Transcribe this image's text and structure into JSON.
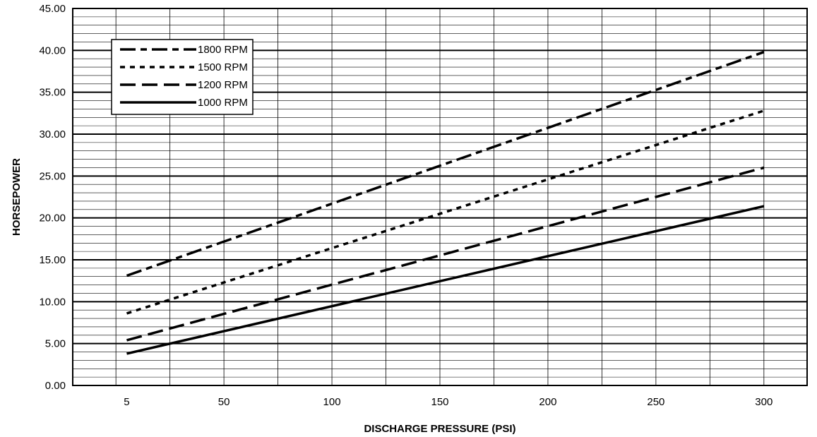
{
  "chart_data": {
    "type": "line",
    "title": "",
    "xlabel": "DISCHARGE PRESSURE (PSI)",
    "ylabel": "HORSEPOWER",
    "xlim": [
      -20,
      320
    ],
    "ylim": [
      0,
      45
    ],
    "x_ticks": [
      5,
      50,
      100,
      150,
      200,
      250,
      300
    ],
    "x_tick_labels": [
      "5",
      "50",
      "100",
      "150",
      "200",
      "250",
      "300"
    ],
    "y_ticks": [
      0,
      5,
      10,
      15,
      20,
      25,
      30,
      35,
      40,
      45
    ],
    "y_tick_labels": [
      "0.00",
      "5.00",
      "10.00",
      "15.00",
      "20.00",
      "25.00",
      "30.00",
      "35.00",
      "40.00",
      "45.00"
    ],
    "vertical_grid": [
      0,
      25,
      50,
      75,
      100,
      125,
      150,
      175,
      200,
      225,
      250,
      275,
      300
    ],
    "minor_grid_step": 1,
    "major_grid_step": 5,
    "legend_position": "top-left",
    "series": [
      {
        "name": "1800 RPM",
        "style": "long-dash-short-dash",
        "values": [
          [
            5,
            13.1
          ],
          [
            300,
            39.8
          ]
        ]
      },
      {
        "name": "1500 RPM",
        "style": "dotted",
        "values": [
          [
            5,
            8.6
          ],
          [
            300,
            32.8
          ]
        ]
      },
      {
        "name": "1200 RPM",
        "style": "long-dash",
        "values": [
          [
            5,
            5.4
          ],
          [
            300,
            26.0
          ]
        ]
      },
      {
        "name": "1000 RPM",
        "style": "solid",
        "values": [
          [
            5,
            3.8
          ],
          [
            300,
            21.4
          ]
        ]
      }
    ]
  }
}
